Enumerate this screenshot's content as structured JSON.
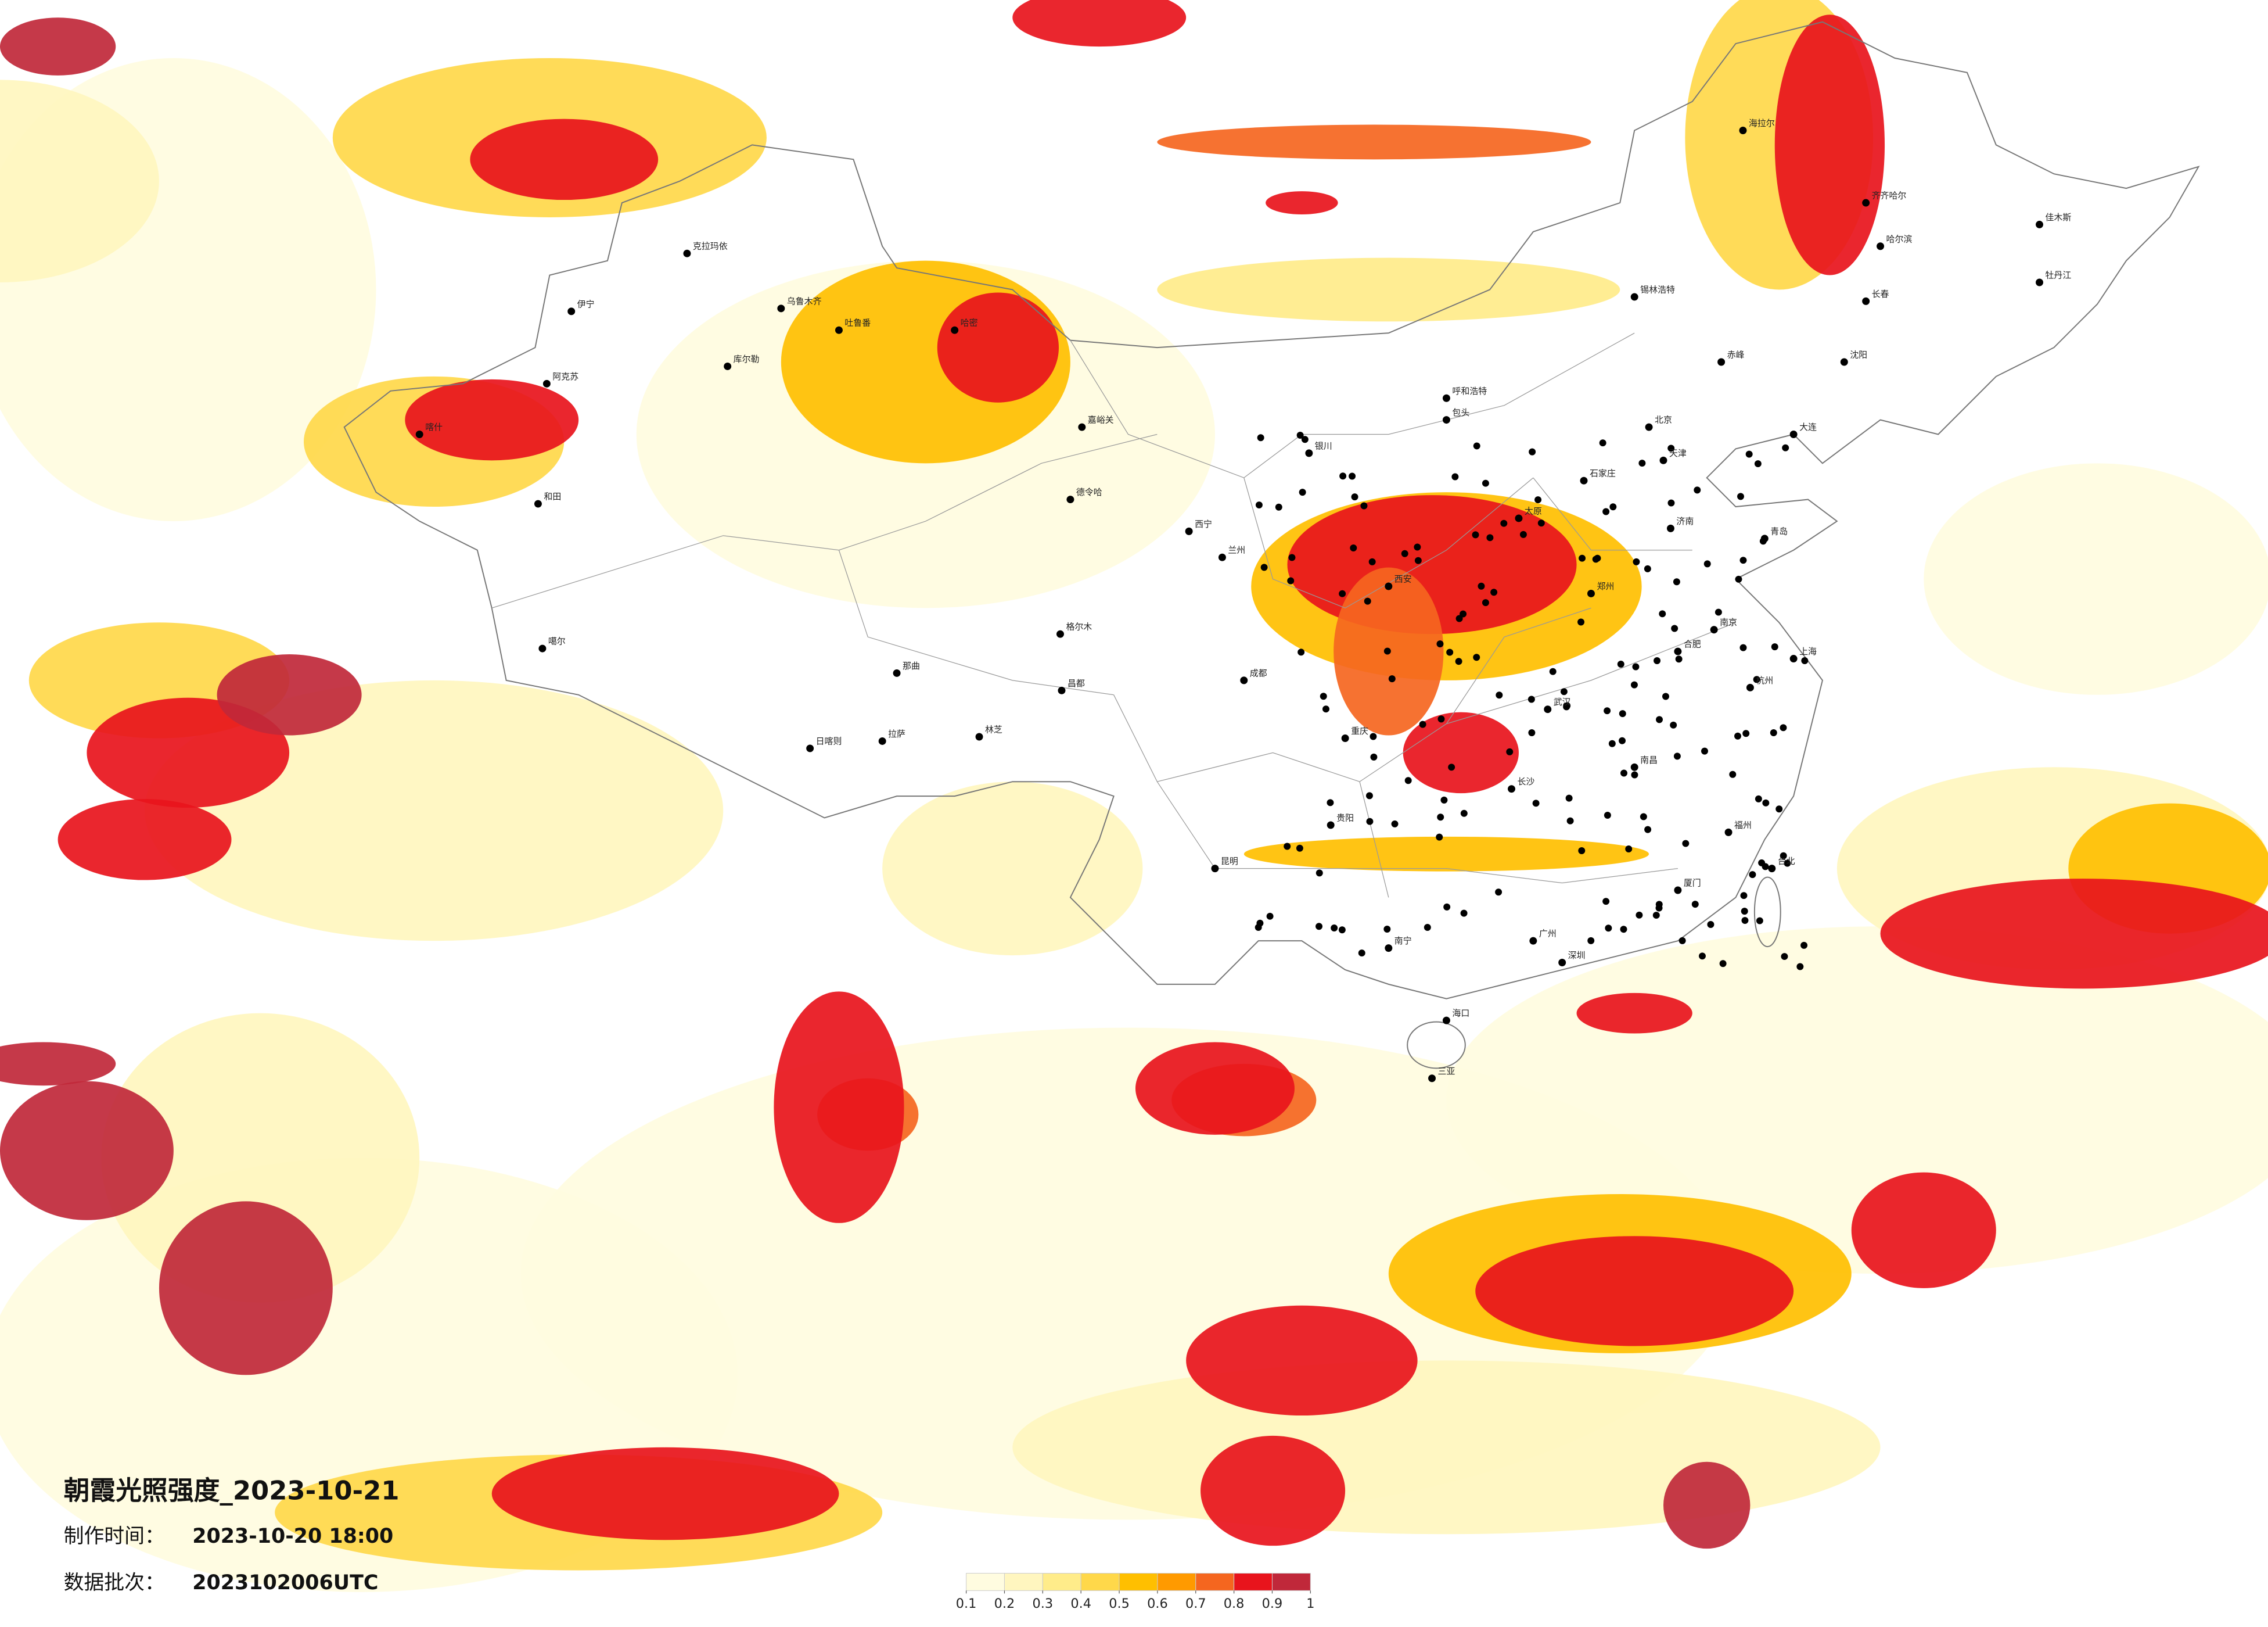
{
  "map": {
    "title": "朝霞光照强度_2023-10-21",
    "info": [
      {
        "label": "制作时间：",
        "value": "2023-10-20 18:00"
      },
      {
        "label": "数据批次：",
        "value": "2023102006UTC"
      }
    ],
    "legend": {
      "ticks": [
        0.1,
        0.2,
        0.3,
        0.4,
        0.5,
        0.6,
        0.7,
        0.8,
        0.9,
        1
      ],
      "colors": [
        "#fffce0",
        "#fff6bf",
        "#ffec8a",
        "#ffd84a",
        "#ffbf00",
        "#ff9a00",
        "#f5661f",
        "#e8141c",
        "#c0283a"
      ]
    },
    "cities": [
      "克拉玛依",
      "伊宁",
      "阿克苏",
      "喀什",
      "和田",
      "库尔勒",
      "乌鲁木齐",
      "吐鲁番",
      "哈密",
      "噶尔",
      "日喀则",
      "拉萨",
      "林芝",
      "那曲",
      "昌都",
      "格尔木",
      "德令哈",
      "嘉峪关",
      "西宁",
      "兰州",
      "银川",
      "呼和浩特",
      "包头",
      "北京",
      "天津",
      "石家庄",
      "太原",
      "济南",
      "青岛",
      "郑州",
      "西安",
      "成都",
      "重庆",
      "贵阳",
      "昆明",
      "南宁",
      "广州",
      "深圳",
      "长沙",
      "武汉",
      "南昌",
      "合肥",
      "南京",
      "上海",
      "杭州",
      "福州",
      "厦门",
      "台北",
      "海口",
      "三亚",
      "哈尔滨",
      "长春",
      "沈阳",
      "大连",
      "齐齐哈尔",
      "海拉尔",
      "佳木斯",
      "牡丹江",
      "锡林浩特",
      "赤峰"
    ]
  }
}
